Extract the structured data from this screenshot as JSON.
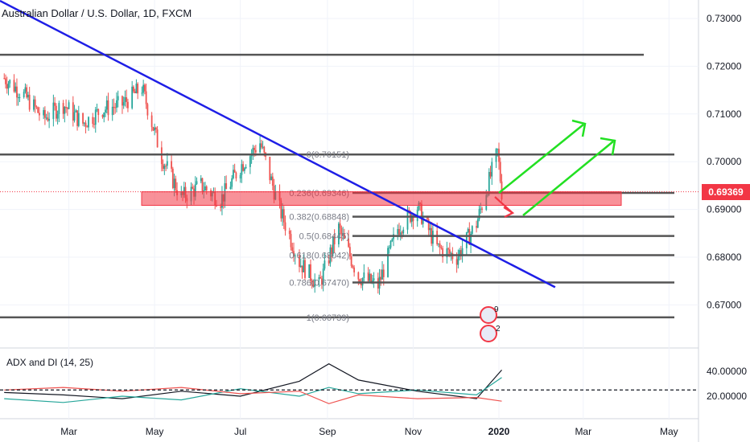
{
  "header": {
    "symbol_title": "Australian Dollar / U.S. Dollar, 1D, FXCM"
  },
  "price_axis": {
    "ticks": [
      "0.73000",
      "0.72000",
      "0.71000",
      "0.70000",
      "0.69000",
      "0.68000",
      "0.67000"
    ],
    "current_price": "0.69369",
    "current_price_color": "#f23645"
  },
  "time_axis": {
    "ticks": [
      "Mar",
      "May",
      "Jul",
      "Sep",
      "Nov",
      "2020",
      "Mar",
      "May"
    ]
  },
  "indicator": {
    "title": "ADX and DI (14, 25)",
    "ticks": [
      "40.00000",
      "20.00000"
    ]
  },
  "fibonacci": [
    {
      "label": "0(0.70151)"
    },
    {
      "label": "0.236(0.69346)"
    },
    {
      "label": "0.382(0.68848)"
    },
    {
      "label": "0.5(0.68445)"
    },
    {
      "label": "0.618(0.68042)"
    },
    {
      "label": "0.786(0.67470)"
    },
    {
      "label": "1(0.66739)"
    }
  ],
  "events": {
    "badge_top": "9",
    "badge_bottom": "2"
  },
  "chart_data": {
    "type": "candlestick",
    "y_range": [
      0.662,
      0.735
    ],
    "x_range": [
      "2019-01-11",
      "2020-05-22"
    ],
    "horizontal_levels": [
      0.7224,
      0.70151,
      0.69346,
      0.68848,
      0.68445,
      0.68042,
      0.6747,
      0.66739
    ],
    "trendline": {
      "start": [
        "2019-01-11",
        0.7337
      ],
      "end": [
        "2020-02-10",
        0.6737
      ],
      "color": "#1e1ee6"
    },
    "resistance_zone": {
      "from": 0.6922,
      "to": 0.6937,
      "color": "#f23645"
    },
    "close_series": {
      "x": [
        "2019-01-14",
        "2019-01-28",
        "2019-02-11",
        "2019-02-25",
        "2019-03-11",
        "2019-03-25",
        "2019-04-08",
        "2019-04-22",
        "2019-05-06",
        "2019-05-20",
        "2019-06-03",
        "2019-06-17",
        "2019-07-01",
        "2019-07-15",
        "2019-07-29",
        "2019-08-12",
        "2019-08-26",
        "2019-09-09",
        "2019-09-23",
        "2019-10-07",
        "2019-10-21",
        "2019-11-04",
        "2019-11-18",
        "2019-12-02",
        "2019-12-16",
        "2019-12-31",
        "2020-01-03"
      ],
      "y": [
        0.7175,
        0.714,
        0.709,
        0.712,
        0.708,
        0.711,
        0.712,
        0.7155,
        0.701,
        0.6925,
        0.695,
        0.692,
        0.699,
        0.704,
        0.69,
        0.679,
        0.674,
        0.686,
        0.676,
        0.674,
        0.686,
        0.6905,
        0.682,
        0.68,
        0.687,
        0.702,
        0.6937
      ]
    },
    "adx_series": {
      "x": [
        "2019-01-14",
        "2019-02-25",
        "2019-04-08",
        "2019-05-20",
        "2019-07-01",
        "2019-08-12",
        "2019-09-02",
        "2019-09-23",
        "2019-11-04",
        "2019-12-16",
        "2020-01-03"
      ],
      "adx": [
        23,
        21,
        18,
        24,
        20,
        32,
        46,
        33,
        24,
        18,
        41
      ],
      "plus_di": [
        18,
        15,
        20,
        17,
        26,
        20,
        27,
        22,
        25,
        21,
        35
      ],
      "minus_di": [
        25,
        27,
        24,
        27,
        22,
        24,
        14,
        21,
        18,
        19,
        16
      ]
    },
    "indicator_level": 25,
    "indicator_range": [
      8,
      48
    ]
  }
}
